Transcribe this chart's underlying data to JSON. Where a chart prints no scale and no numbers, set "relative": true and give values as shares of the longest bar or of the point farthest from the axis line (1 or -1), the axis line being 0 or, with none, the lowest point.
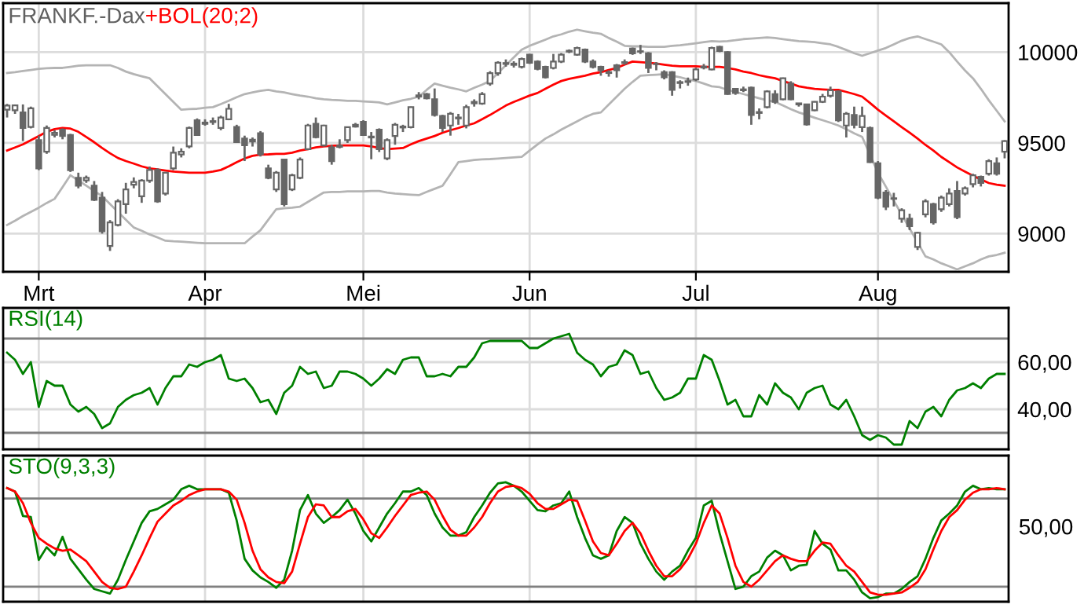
{
  "chart_data": [
    {
      "type": "candlestick",
      "title": "FRANKF.-Dax",
      "color": "#666666",
      "categories": [
        null,
        null,
        null,
        null,
        "Mrt",
        null,
        null,
        null,
        null,
        null,
        null,
        null,
        null,
        null,
        null,
        null,
        null,
        null,
        null,
        null,
        null,
        null,
        null,
        null,
        null,
        "Apr",
        null,
        null,
        null,
        null,
        null,
        null,
        null,
        null,
        null,
        null,
        null,
        null,
        null,
        null,
        null,
        null,
        null,
        null,
        null,
        "Mei",
        null,
        null,
        null,
        null,
        null,
        null,
        null,
        null,
        null,
        null,
        null,
        null,
        null,
        null,
        null,
        null,
        null,
        null,
        null,
        null,
        "Jun",
        null,
        null,
        null,
        null,
        null,
        null,
        null,
        null,
        null,
        null,
        null,
        null,
        null,
        null,
        null,
        null,
        null,
        null,
        null,
        null,
        "Jul",
        null,
        null,
        null,
        null,
        null,
        null,
        null,
        null,
        null,
        null,
        null,
        null,
        null,
        null,
        null,
        null,
        null,
        null,
        null,
        null,
        null,
        null,
        "Aug",
        null,
        null,
        null,
        null,
        null,
        null,
        null,
        null,
        null,
        null,
        null,
        null,
        null,
        null,
        null,
        null
      ],
      "ohlc": [
        [
          9683,
          9715,
          9640,
          9706
        ],
        [
          9680,
          9712,
          9660,
          9707
        ],
        [
          9668,
          9712,
          9510,
          9582
        ],
        [
          9588,
          9700,
          9580,
          9691
        ],
        [
          9515,
          9540,
          9350,
          9360
        ],
        [
          9452,
          9596,
          9440,
          9582
        ],
        [
          9545,
          9570,
          9530,
          9555
        ],
        [
          9573,
          9580,
          9520,
          9538
        ],
        [
          9544,
          9550,
          9340,
          9350
        ],
        [
          9308,
          9336,
          9250,
          9264
        ],
        [
          9294,
          9320,
          9280,
          9308
        ],
        [
          9264,
          9290,
          9180,
          9186
        ],
        [
          9198,
          9230,
          9000,
          9013
        ],
        [
          8932,
          9075,
          8905,
          9062
        ],
        [
          9048,
          9190,
          9040,
          9178
        ],
        [
          9163,
          9280,
          9110,
          9244
        ],
        [
          9270,
          9310,
          9250,
          9285
        ],
        [
          9206,
          9300,
          9170,
          9293
        ],
        [
          9293,
          9370,
          9280,
          9351
        ],
        [
          9351,
          9360,
          9170,
          9178
        ],
        [
          9221,
          9340,
          9210,
          9336
        ],
        [
          9360,
          9480,
          9350,
          9446
        ],
        [
          9436,
          9470,
          9420,
          9452
        ],
        [
          9481,
          9590,
          9470,
          9582
        ],
        [
          9625,
          9635,
          9540,
          9544
        ],
        [
          9605,
          9630,
          9595,
          9612
        ],
        [
          9615,
          9640,
          9600,
          9620
        ],
        [
          9582,
          9650,
          9570,
          9640
        ],
        [
          9630,
          9715,
          9625,
          9688
        ],
        [
          9588,
          9600,
          9500,
          9504
        ],
        [
          9524,
          9540,
          9400,
          9487
        ],
        [
          9508,
          9530,
          9480,
          9518
        ],
        [
          9553,
          9565,
          9425,
          9437
        ],
        [
          9360,
          9380,
          9300,
          9308
        ],
        [
          9244,
          9345,
          9230,
          9336
        ],
        [
          9408,
          9410,
          9150,
          9163
        ],
        [
          9244,
          9330,
          9235,
          9322
        ],
        [
          9308,
          9420,
          9300,
          9408
        ],
        [
          9466,
          9605,
          9460,
          9596
        ],
        [
          9605,
          9640,
          9525,
          9532
        ],
        [
          9486,
          9600,
          9480,
          9596
        ],
        [
          9475,
          9490,
          9380,
          9400
        ],
        [
          9478,
          9520,
          9470,
          9485
        ],
        [
          9515,
          9590,
          9500,
          9587
        ],
        [
          9590,
          9610,
          9585,
          9600
        ],
        [
          9616,
          9625,
          9540,
          9544
        ],
        [
          9530,
          9560,
          9410,
          9535
        ],
        [
          9573,
          9580,
          9450,
          9466
        ],
        [
          9415,
          9525,
          9405,
          9515
        ],
        [
          9538,
          9610,
          9490,
          9600
        ],
        [
          9585,
          9600,
          9560,
          9590
        ],
        [
          9587,
          9700,
          9580,
          9697
        ],
        [
          9755,
          9780,
          9740,
          9762
        ],
        [
          9769,
          9775,
          9740,
          9746
        ],
        [
          9740,
          9800,
          9645,
          9654
        ],
        [
          9648,
          9655,
          9560,
          9582
        ],
        [
          9596,
          9670,
          9540,
          9660
        ],
        [
          9635,
          9660,
          9600,
          9640
        ],
        [
          9596,
          9710,
          9580,
          9697
        ],
        [
          9718,
          9740,
          9700,
          9726
        ],
        [
          9717,
          9780,
          9710,
          9769
        ],
        [
          9827,
          9895,
          9815,
          9884
        ],
        [
          9884,
          9950,
          9870,
          9942
        ],
        [
          9935,
          9960,
          9920,
          9940
        ],
        [
          9930,
          9950,
          9915,
          9937
        ],
        [
          9919,
          9970,
          9910,
          9962
        ],
        [
          9986,
          9990,
          9935,
          9942
        ],
        [
          9948,
          9955,
          9900,
          9908
        ],
        [
          9919,
          9925,
          9855,
          9862
        ],
        [
          9913,
          9990,
          9905,
          9948
        ],
        [
          9948,
          9995,
          9940,
          9986
        ],
        [
          10003,
          10015,
          9995,
          10008
        ],
        [
          9986,
          10030,
          9980,
          10023
        ],
        [
          10014,
          10020,
          9940,
          9948
        ],
        [
          9948,
          9960,
          9910,
          9919
        ],
        [
          9919,
          9925,
          9870,
          9900
        ],
        [
          9890,
          9900,
          9865,
          9885
        ],
        [
          9928,
          9935,
          9860,
          9900
        ],
        [
          9940,
          9960,
          9930,
          9945
        ],
        [
          10020,
          10025,
          9985,
          9994
        ],
        [
          10003,
          10040,
          9990,
          10005
        ],
        [
          9994,
          10000,
          9885,
          9913
        ],
        [
          9934,
          9945,
          9900,
          9935
        ],
        [
          9890,
          9900,
          9850,
          9862
        ],
        [
          9890,
          9895,
          9760,
          9792
        ],
        [
          9830,
          9845,
          9800,
          9835
        ],
        [
          9836,
          9860,
          9815,
          9840
        ],
        [
          9850,
          9915,
          9840,
          9905
        ],
        [
          9915,
          9935,
          9905,
          9920
        ],
        [
          9905,
          10030,
          9900,
          10023
        ],
        [
          10029,
          10035,
          10000,
          10006
        ],
        [
          10000,
          10005,
          9765,
          9770
        ],
        [
          9798,
          9800,
          9765,
          9775
        ],
        [
          9790,
          9810,
          9780,
          9795
        ],
        [
          9804,
          9810,
          9600,
          9654
        ],
        [
          9670,
          9690,
          9630,
          9665
        ],
        [
          9697,
          9790,
          9690,
          9784
        ],
        [
          9769,
          9790,
          9715,
          9726
        ],
        [
          9740,
          9860,
          9735,
          9856
        ],
        [
          9827,
          9840,
          9735,
          9740
        ],
        [
          9712,
          9720,
          9700,
          9718
        ],
        [
          9712,
          9715,
          9595,
          9602
        ],
        [
          9680,
          9730,
          9675,
          9726
        ],
        [
          9726,
          9770,
          9720,
          9755
        ],
        [
          9760,
          9810,
          9750,
          9790
        ],
        [
          9784,
          9790,
          9615,
          9625
        ],
        [
          9596,
          9670,
          9530,
          9660
        ],
        [
          9654,
          9700,
          9580,
          9600
        ],
        [
          9587,
          9700,
          9560,
          9648
        ],
        [
          9582,
          9590,
          9390,
          9394
        ],
        [
          9388,
          9400,
          9190,
          9198
        ],
        [
          9227,
          9240,
          9130,
          9149
        ],
        [
          9192,
          9225,
          9150,
          9195
        ],
        [
          9083,
          9140,
          9060,
          9129
        ],
        [
          9083,
          9110,
          9020,
          9042
        ],
        [
          8927,
          9010,
          8910,
          9005
        ],
        [
          9106,
          9190,
          9090,
          9178
        ],
        [
          9163,
          9170,
          9050,
          9062
        ],
        [
          9135,
          9210,
          9120,
          9198
        ],
        [
          9163,
          9250,
          9150,
          9221
        ],
        [
          9235,
          9290,
          9080,
          9091
        ],
        [
          9221,
          9260,
          9210,
          9250
        ],
        [
          9273,
          9330,
          9255,
          9322
        ],
        [
          9313,
          9320,
          9260,
          9279
        ],
        [
          9330,
          9410,
          9320,
          9400
        ],
        [
          9388,
          9420,
          9320,
          9330
        ],
        [
          9452,
          9515,
          9415,
          9510
        ]
      ],
      "series": [
        {
          "type": "line",
          "color": "#b4b4b4",
          "values": [
            9885,
            9890,
            9896,
            9902,
            9908,
            9911,
            9913,
            9913,
            9919,
            9925,
            9928,
            9928,
            9928,
            9928,
            9913,
            9893,
            9879,
            9867,
            9856,
            9812,
            9769,
            9726,
            9683,
            9686,
            9688,
            9694,
            9697,
            9714,
            9732,
            9752,
            9769,
            9778,
            9787,
            9792,
            9784,
            9778,
            9769,
            9761,
            9755,
            9746,
            9740,
            9737,
            9735,
            9732,
            9732,
            9729,
            9726,
            9723,
            9712,
            9723,
            9735,
            9743,
            9755,
            9792,
            9827,
            9815,
            9804,
            9795,
            9784,
            9804,
            9821,
            9841,
            9885,
            9928,
            9971,
            10014,
            10035,
            10052,
            10069,
            10087,
            10098,
            10113,
            10124,
            10115,
            10107,
            10101,
            10078,
            10058,
            10035,
            10032,
            10032,
            10029,
            10029,
            10029,
            10035,
            10038,
            10043,
            10049,
            10055,
            10061,
            10058,
            10061,
            10066,
            10072,
            10075,
            10078,
            10081,
            10078,
            10072,
            10066,
            10061,
            10058,
            10055,
            10049,
            10043,
            10029,
            10012,
            9994,
            9980,
            9994,
            10009,
            10023,
            10043,
            10063,
            10078,
            10087,
            10072,
            10058,
            10043,
            10000,
            9948,
            9899,
            9856,
            9798,
            9735,
            9677,
            9619
          ]
        },
        {
          "type": "line",
          "color": "#b4b4b4",
          "values": [
            9048,
            9071,
            9097,
            9120,
            9143,
            9169,
            9192,
            9256,
            9322,
            9293,
            9264,
            9235,
            9207,
            9163,
            9120,
            9077,
            9034,
            9016,
            8996,
            8979,
            8961,
            8958,
            8956,
            8953,
            8950,
            8947,
            8947,
            8947,
            8947,
            8947,
            8947,
            8984,
            9019,
            9077,
            9135,
            9140,
            9143,
            9149,
            9175,
            9201,
            9227,
            9230,
            9230,
            9233,
            9233,
            9233,
            9235,
            9235,
            9227,
            9221,
            9218,
            9215,
            9212,
            9230,
            9247,
            9264,
            9328,
            9394,
            9400,
            9406,
            9409,
            9411,
            9414,
            9417,
            9420,
            9423,
            9458,
            9492,
            9524,
            9547,
            9573,
            9596,
            9619,
            9642,
            9660,
            9668,
            9712,
            9755,
            9798,
            9836,
            9870,
            9873,
            9876,
            9879,
            9870,
            9862,
            9850,
            9841,
            9827,
            9812,
            9807,
            9792,
            9781,
            9769,
            9758,
            9746,
            9735,
            9726,
            9706,
            9686,
            9668,
            9654,
            9639,
            9625,
            9611,
            9596,
            9576,
            9553,
            9533,
            9435,
            9336,
            9259,
            9181,
            9106,
            9028,
            8953,
            8875,
            8858,
            8837,
            8820,
            8803,
            8820,
            8837,
            8858,
            8875,
            8883,
            8895
          ]
        },
        {
          "type": "line",
          "name": "+BOL(20;2)",
          "color": "#ff0000",
          "values": [
            9458,
            9475,
            9492,
            9515,
            9538,
            9561,
            9576,
            9582,
            9579,
            9561,
            9533,
            9504,
            9472,
            9443,
            9417,
            9400,
            9386,
            9371,
            9360,
            9354,
            9348,
            9342,
            9339,
            9336,
            9336,
            9336,
            9342,
            9351,
            9371,
            9394,
            9414,
            9429,
            9435,
            9437,
            9440,
            9440,
            9446,
            9458,
            9466,
            9475,
            9481,
            9484,
            9486,
            9486,
            9486,
            9486,
            9481,
            9472,
            9466,
            9469,
            9472,
            9492,
            9510,
            9524,
            9538,
            9556,
            9570,
            9582,
            9596,
            9608,
            9631,
            9654,
            9680,
            9706,
            9726,
            9743,
            9761,
            9775,
            9798,
            9821,
            9841,
            9853,
            9862,
            9870,
            9882,
            9890,
            9902,
            9913,
            9931,
            9948,
            9945,
            9942,
            9937,
            9931,
            9925,
            9922,
            9922,
            9922,
            9919,
            9919,
            9919,
            9913,
            9905,
            9893,
            9885,
            9873,
            9864,
            9856,
            9841,
            9827,
            9812,
            9804,
            9798,
            9795,
            9792,
            9792,
            9781,
            9769,
            9755,
            9720,
            9683,
            9651,
            9619,
            9587,
            9556,
            9524,
            9489,
            9458,
            9423,
            9394,
            9365,
            9342,
            9319,
            9299,
            9279,
            9270,
            9264
          ]
        }
      ],
      "legend": "top left",
      "ylim": [
        8790,
        10270
      ],
      "yticks": [
        9000,
        9500,
        10000
      ],
      "grid": true
    },
    {
      "type": "line",
      "title": "RSI(14)",
      "tick_labels": "y",
      "categories": [
        null,
        null,
        null,
        null,
        null,
        null,
        null,
        null,
        null,
        null,
        null,
        null,
        null,
        null,
        null,
        null,
        null,
        null,
        null,
        null,
        null,
        null,
        null,
        null,
        null,
        null,
        null,
        null,
        null,
        null,
        null,
        null,
        null,
        null,
        null,
        null,
        null,
        null,
        null,
        null,
        null,
        null,
        null,
        null,
        null,
        null,
        null,
        null,
        null,
        null,
        null,
        null,
        null,
        null,
        null,
        null,
        null,
        null,
        null,
        null,
        null,
        null,
        null,
        null,
        null,
        null,
        null,
        null,
        null,
        null,
        null,
        null,
        null,
        null,
        null,
        null,
        null,
        null,
        null,
        null,
        null,
        null,
        null,
        null,
        null,
        null,
        null,
        null,
        null,
        null,
        null,
        null,
        null,
        null,
        null,
        null,
        null,
        null,
        null,
        null,
        null,
        null,
        null,
        null,
        null,
        null,
        null,
        null,
        null,
        null,
        null,
        null,
        null,
        null,
        null,
        null,
        null,
        null,
        null,
        null,
        null,
        null,
        null,
        null,
        null,
        null,
        null
      ],
      "series": [
        {
          "color": "#008000",
          "values": [
            64,
            61,
            55,
            60,
            41,
            52,
            50,
            50,
            42,
            39,
            41,
            38,
            32,
            34,
            41,
            44,
            46,
            47,
            49,
            42,
            49,
            54,
            54,
            59,
            58,
            60,
            61,
            63,
            53,
            52,
            53,
            49,
            43,
            44,
            38,
            47,
            50,
            58,
            55,
            56,
            49,
            50,
            56,
            56,
            55,
            53,
            50,
            53,
            57,
            55,
            61,
            62,
            62,
            54,
            54,
            55,
            54,
            58,
            58,
            62,
            68,
            69,
            69,
            69,
            69,
            69,
            66,
            66,
            68,
            70,
            71,
            72,
            64,
            61,
            59,
            54,
            58,
            59,
            65,
            63,
            55,
            56,
            49,
            44,
            45,
            47,
            53,
            53,
            63,
            61,
            52,
            42,
            44,
            37,
            37,
            46,
            42,
            51,
            47,
            45,
            40,
            47,
            49,
            50,
            42,
            40,
            44,
            37,
            29,
            27,
            29,
            28,
            25,
            25,
            35,
            32,
            39,
            41,
            37,
            44,
            48,
            49,
            51,
            49,
            53,
            55,
            55
          ]
        }
      ],
      "ref_lines": [
        {
          "axis": "y",
          "value": 70,
          "color": "#808080"
        },
        {
          "axis": "y",
          "value": 30,
          "color": "#808080"
        }
      ],
      "ylim": [
        23,
        83
      ],
      "yticks": [
        {
          "value": 40,
          "label": "40,00"
        },
        {
          "value": 60,
          "label": "60,00"
        }
      ],
      "grid": true
    },
    {
      "type": "line",
      "title": "STO(9,3,3)",
      "tick_labels": "y",
      "categories": [
        null,
        null,
        null,
        null,
        null,
        null,
        null,
        null,
        null,
        null,
        null,
        null,
        null,
        null,
        null,
        null,
        null,
        null,
        null,
        null,
        null,
        null,
        null,
        null,
        null,
        null,
        null,
        null,
        null,
        null,
        null,
        null,
        null,
        null,
        null,
        null,
        null,
        null,
        null,
        null,
        null,
        null,
        null,
        null,
        null,
        null,
        null,
        null,
        null,
        null,
        null,
        null,
        null,
        null,
        null,
        null,
        null,
        null,
        null,
        null,
        null,
        null,
        null,
        null,
        null,
        null,
        null,
        null,
        null,
        null,
        null,
        null,
        null,
        null,
        null,
        null,
        null,
        null,
        null,
        null,
        null,
        null,
        null,
        null,
        null,
        null,
        null,
        null,
        null,
        null,
        null,
        null,
        null,
        null,
        null,
        null,
        null,
        null,
        null,
        null,
        null,
        null,
        null,
        null,
        null,
        null,
        null,
        null,
        null,
        null,
        null,
        null,
        null,
        null,
        null,
        null,
        null,
        null,
        null,
        null,
        null,
        null,
        null,
        null,
        null,
        null,
        null
      ],
      "series": [
        {
          "color": "#008000",
          "values": [
            0.95,
            0.92,
            0.71,
            0.7,
            0.33,
            0.44,
            0.37,
            0.53,
            0.34,
            0.25,
            0.16,
            0.08,
            0.06,
            0.04,
            0.16,
            0.33,
            0.49,
            0.65,
            0.75,
            0.77,
            0.81,
            0.85,
            0.94,
            0.97,
            0.94,
            0.94,
            0.94,
            0.94,
            0.91,
            0.67,
            0.34,
            0.24,
            0.18,
            0.14,
            0.09,
            0.16,
            0.41,
            0.76,
            0.89,
            0.73,
            0.65,
            0.7,
            0.76,
            0.85,
            0.73,
            0.58,
            0.49,
            0.61,
            0.73,
            0.82,
            0.92,
            0.92,
            0.95,
            0.89,
            0.73,
            0.61,
            0.54,
            0.54,
            0.57,
            0.7,
            0.8,
            0.91,
            0.99,
            1,
            0.97,
            0.92,
            0.84,
            0.76,
            0.75,
            0.8,
            0.82,
            0.92,
            0.7,
            0.52,
            0.37,
            0.34,
            0.37,
            0.58,
            0.7,
            0.65,
            0.47,
            0.34,
            0.23,
            0.16,
            0.23,
            0.28,
            0.41,
            0.52,
            0.8,
            0.84,
            0.56,
            0.32,
            0.08,
            0.1,
            0.19,
            0.23,
            0.35,
            0.41,
            0.37,
            0.24,
            0.28,
            0.29,
            0.58,
            0.47,
            0.42,
            0.24,
            0.24,
            0.16,
            0.05,
            0,
            0.01,
            0.04,
            0.04,
            0.08,
            0.14,
            0.19,
            0.34,
            0.52,
            0.67,
            0.73,
            0.8,
            0.92,
            0.97,
            0.94,
            0.95,
            0.94,
            0.94
          ]
        },
        {
          "color": "#ff0000",
          "values": [
            0.95,
            0.92,
            0.82,
            0.65,
            0.52,
            0.47,
            0.43,
            0.41,
            0.42,
            0.37,
            0.32,
            0.23,
            0.14,
            0.09,
            0.08,
            0.1,
            0.23,
            0.37,
            0.52,
            0.66,
            0.73,
            0.8,
            0.84,
            0.89,
            0.92,
            0.94,
            0.94,
            0.94,
            0.92,
            0.85,
            0.65,
            0.41,
            0.25,
            0.18,
            0.14,
            0.13,
            0.23,
            0.47,
            0.7,
            0.81,
            0.8,
            0.7,
            0.7,
            0.75,
            0.77,
            0.68,
            0.56,
            0.52,
            0.61,
            0.71,
            0.8,
            0.89,
            0.91,
            0.92,
            0.85,
            0.71,
            0.59,
            0.54,
            0.54,
            0.61,
            0.7,
            0.82,
            0.92,
            0.96,
            0.97,
            0.95,
            0.9,
            0.82,
            0.77,
            0.77,
            0.81,
            0.85,
            0.84,
            0.67,
            0.49,
            0.39,
            0.37,
            0.47,
            0.58,
            0.65,
            0.56,
            0.41,
            0.28,
            0.19,
            0.19,
            0.25,
            0.34,
            0.47,
            0.65,
            0.8,
            0.73,
            0.52,
            0.28,
            0.14,
            0.1,
            0.16,
            0.24,
            0.32,
            0.37,
            0.34,
            0.32,
            0.32,
            0.41,
            0.48,
            0.47,
            0.37,
            0.28,
            0.23,
            0.14,
            0.05,
            0.03,
            0.03,
            0.04,
            0.05,
            0.09,
            0.14,
            0.25,
            0.42,
            0.58,
            0.7,
            0.76,
            0.85,
            0.91,
            0.94,
            0.94,
            0.95,
            0.94
          ]
        }
      ],
      "ref_lines": [
        {
          "axis": "y",
          "value": 0.86,
          "color": "#808080"
        },
        {
          "axis": "y",
          "value": 0.1,
          "color": "#808080"
        }
      ],
      "relative": true,
      "annotations": [
        "50,00"
      ],
      "grid": true
    }
  ]
}
